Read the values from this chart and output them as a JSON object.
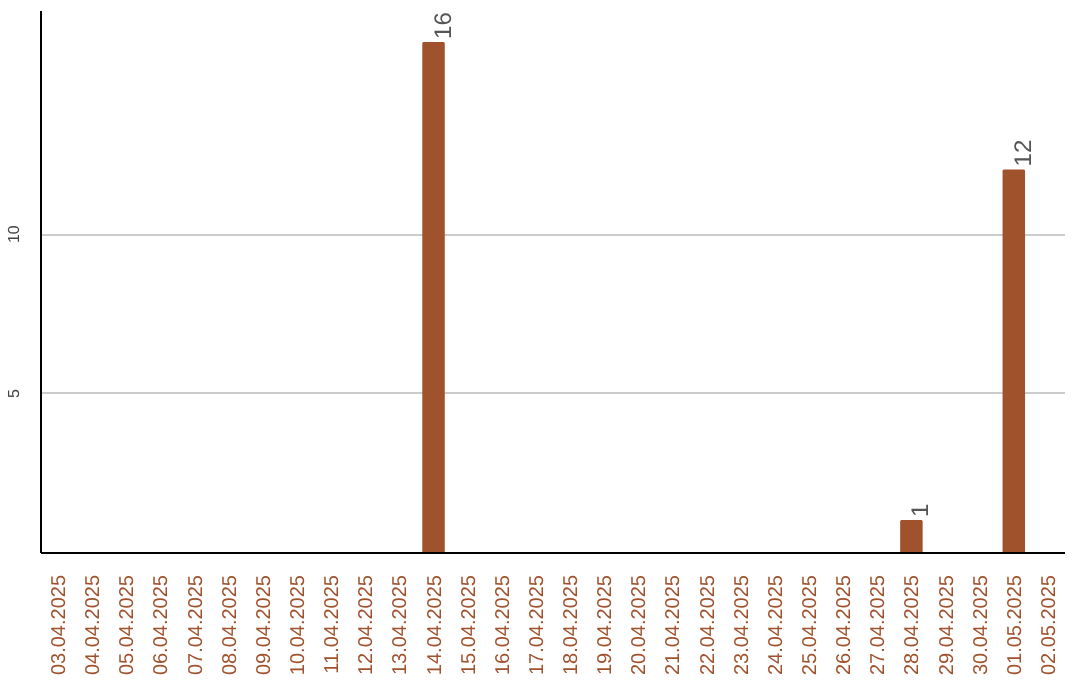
{
  "chart_data": {
    "type": "bar",
    "categories": [
      "03.04.2025",
      "04.04.2025",
      "05.04.2025",
      "06.04.2025",
      "07.04.2025",
      "08.04.2025",
      "09.04.2025",
      "10.04.2025",
      "11.04.2025",
      "12.04.2025",
      "13.04.2025",
      "14.04.2025",
      "15.04.2025",
      "16.04.2025",
      "17.04.2025",
      "18.04.2025",
      "19.04.2025",
      "20.04.2025",
      "21.04.2025",
      "22.04.2025",
      "23.04.2025",
      "24.04.2025",
      "25.04.2025",
      "26.04.2025",
      "27.04.2025",
      "28.04.2025",
      "29.04.2025",
      "30.04.2025",
      "01.05.2025",
      "02.05.2025"
    ],
    "values": [
      0,
      0,
      0,
      0,
      0,
      0,
      0,
      0,
      0,
      0,
      0,
      16,
      0,
      0,
      0,
      0,
      0,
      0,
      0,
      0,
      0,
      0,
      0,
      0,
      0,
      1,
      0,
      0,
      12,
      0
    ],
    "value_labels": [
      null,
      null,
      null,
      null,
      null,
      null,
      null,
      null,
      null,
      null,
      null,
      "16",
      null,
      null,
      null,
      null,
      null,
      null,
      null,
      null,
      null,
      null,
      null,
      null,
      null,
      "1",
      null,
      null,
      "12",
      null
    ],
    "color": "#a0522d",
    "ylim": [
      0,
      17
    ],
    "yticks": [
      5,
      10
    ],
    "grid": "y"
  }
}
